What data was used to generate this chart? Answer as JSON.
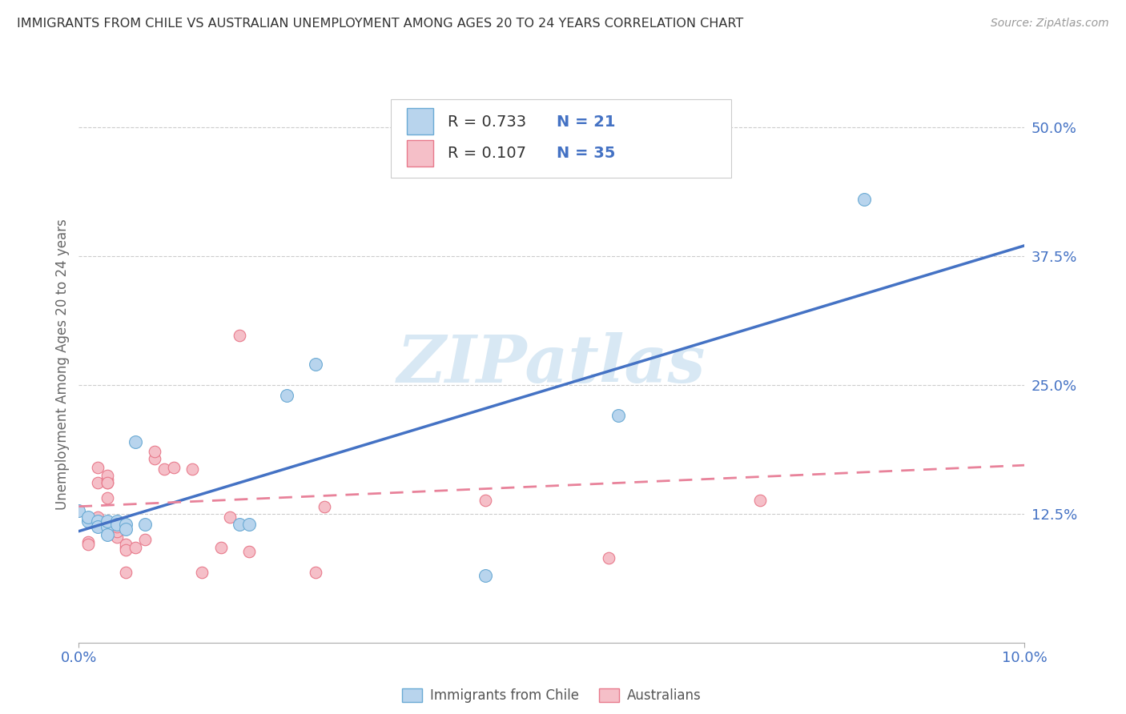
{
  "title": "IMMIGRANTS FROM CHILE VS AUSTRALIAN UNEMPLOYMENT AMONG AGES 20 TO 24 YEARS CORRELATION CHART",
  "source": "Source: ZipAtlas.com",
  "ylabel": "Unemployment Among Ages 20 to 24 years",
  "xlim": [
    0.0,
    0.1
  ],
  "ylim": [
    0.0,
    0.54
  ],
  "ytick_vals": [
    0.125,
    0.25,
    0.375,
    0.5
  ],
  "ytick_labels": [
    "12.5%",
    "25.0%",
    "37.5%",
    "50.0%"
  ],
  "xtick_vals": [
    0.0,
    0.1
  ],
  "xtick_labels": [
    "0.0%",
    "10.0%"
  ],
  "legend_r1": "R = 0.733",
  "legend_n1": "N = 21",
  "legend_r2": "R = 0.107",
  "legend_n2": "N = 35",
  "series1_label": "Immigrants from Chile",
  "series2_label": "Australians",
  "series1_face_color": "#b8d4ed",
  "series1_edge_color": "#6aaad4",
  "series2_face_color": "#f5bfc8",
  "series2_edge_color": "#e87a8c",
  "series1_line_color": "#4472C4",
  "series2_line_color": "#e8829a",
  "series1_x": [
    0.0,
    0.001,
    0.001,
    0.002,
    0.002,
    0.003,
    0.003,
    0.003,
    0.004,
    0.004,
    0.005,
    0.005,
    0.006,
    0.007,
    0.017,
    0.018,
    0.022,
    0.025,
    0.043,
    0.057,
    0.083
  ],
  "series1_y": [
    0.128,
    0.118,
    0.122,
    0.118,
    0.112,
    0.112,
    0.105,
    0.118,
    0.118,
    0.115,
    0.115,
    0.11,
    0.195,
    0.115,
    0.115,
    0.115,
    0.24,
    0.27,
    0.065,
    0.22,
    0.43
  ],
  "series2_x": [
    0.0,
    0.001,
    0.001,
    0.002,
    0.002,
    0.002,
    0.003,
    0.003,
    0.003,
    0.003,
    0.003,
    0.004,
    0.004,
    0.004,
    0.005,
    0.005,
    0.005,
    0.005,
    0.006,
    0.007,
    0.008,
    0.008,
    0.009,
    0.01,
    0.012,
    0.013,
    0.015,
    0.016,
    0.017,
    0.018,
    0.025,
    0.026,
    0.043,
    0.056,
    0.072
  ],
  "series2_y": [
    0.128,
    0.098,
    0.095,
    0.122,
    0.155,
    0.17,
    0.14,
    0.155,
    0.158,
    0.162,
    0.155,
    0.102,
    0.108,
    0.112,
    0.068,
    0.092,
    0.095,
    0.09,
    0.092,
    0.1,
    0.178,
    0.185,
    0.168,
    0.17,
    0.168,
    0.068,
    0.092,
    0.122,
    0.298,
    0.088,
    0.068,
    0.132,
    0.138,
    0.082,
    0.138
  ],
  "series1_trend_x": [
    0.0,
    0.1
  ],
  "series1_trend_y": [
    0.108,
    0.385
  ],
  "series2_trend_x": [
    0.0,
    0.1
  ],
  "series2_trend_y": [
    0.132,
    0.172
  ],
  "watermark": "ZIPatlas",
  "watermark_color": "#d8e8f4",
  "background_color": "#ffffff",
  "grid_color": "#cccccc",
  "title_color": "#333333",
  "right_tick_color": "#4472C4",
  "ylabel_color": "#666666"
}
